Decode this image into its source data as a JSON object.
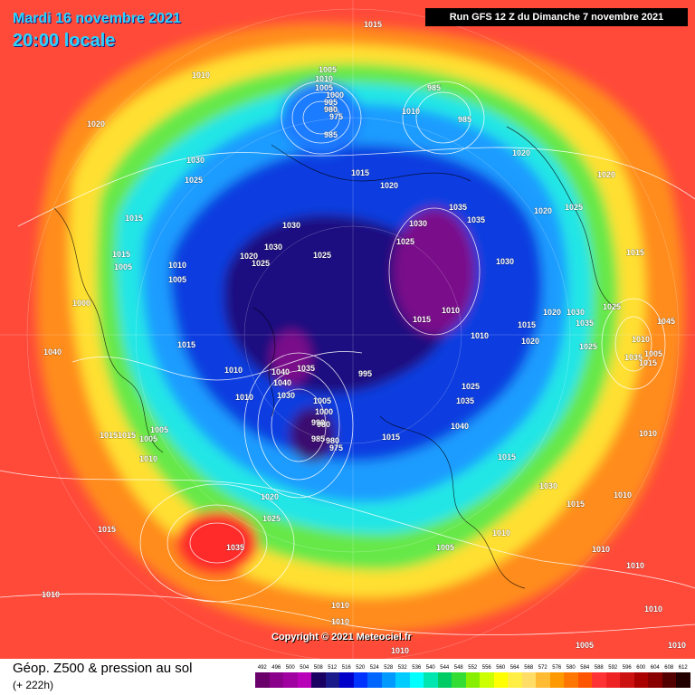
{
  "header": {
    "date": "Mardi 16 novembre 2021",
    "time": "20:00 locale",
    "run": "Run GFS 12 Z du Dimanche 7 novembre 2021"
  },
  "copyright": "Copyright © 2021 Meteociel.fr",
  "footer": {
    "title": "Géop. Z500 & pression au sol",
    "subtitle": "(+ 222h)"
  },
  "scale": {
    "labels": [
      "492",
      "496",
      "500",
      "504",
      "508",
      "512",
      "516",
      "520",
      "524",
      "528",
      "532",
      "536",
      "540",
      "544",
      "548",
      "552",
      "556",
      "560",
      "564",
      "568",
      "572",
      "576",
      "580",
      "584",
      "588",
      "592",
      "596",
      "600",
      "604",
      "608",
      "612"
    ],
    "colors": [
      "#6a006a",
      "#8a008a",
      "#a000a0",
      "#b800b8",
      "#1a0060",
      "#1a1a8a",
      "#0000c8",
      "#0033ff",
      "#0066ff",
      "#0099ff",
      "#00ccff",
      "#00ffff",
      "#00e6b0",
      "#00cc66",
      "#33dd33",
      "#88ee00",
      "#ccff00",
      "#ffff00",
      "#ffee44",
      "#ffdd66",
      "#ffbb33",
      "#ff9900",
      "#ff7700",
      "#ff5500",
      "#ff3333",
      "#ee2222",
      "#cc1111",
      "#aa0000",
      "#880000",
      "#550000",
      "#220000"
    ]
  },
  "isobars": [
    {
      "text": "1015"
    },
    {
      "text": "1005"
    },
    {
      "text": "1010"
    },
    {
      "text": "1010"
    },
    {
      "text": "1005"
    },
    {
      "text": "1000"
    },
    {
      "text": "995"
    },
    {
      "text": "990"
    },
    {
      "text": "980"
    },
    {
      "text": "975"
    },
    {
      "text": "985"
    },
    {
      "text": "985"
    },
    {
      "text": "1010"
    },
    {
      "text": "985"
    },
    {
      "text": "1020"
    },
    {
      "text": "1030"
    },
    {
      "text": "1025"
    },
    {
      "text": "1015"
    },
    {
      "text": "1020"
    },
    {
      "text": "1020"
    },
    {
      "text": "1015"
    },
    {
      "text": "1020"
    },
    {
      "text": "1015"
    },
    {
      "text": "1005"
    },
    {
      "text": "1010"
    },
    {
      "text": "1005"
    },
    {
      "text": "1000"
    },
    {
      "text": "1020"
    },
    {
      "text": "1025"
    },
    {
      "text": "1030"
    },
    {
      "text": "1025"
    },
    {
      "text": "1030"
    },
    {
      "text": "1035"
    },
    {
      "text": "1035"
    },
    {
      "text": "1020"
    },
    {
      "text": "1025"
    },
    {
      "text": "1030"
    },
    {
      "text": "1015"
    },
    {
      "text": "1025"
    },
    {
      "text": "1020"
    },
    {
      "text": "1025"
    },
    {
      "text": "1015"
    },
    {
      "text": "1010"
    },
    {
      "text": "1010"
    },
    {
      "text": "1015"
    },
    {
      "text": "1020"
    },
    {
      "text": "1030"
    },
    {
      "text": "1035"
    },
    {
      "text": "1040"
    },
    {
      "text": "1015"
    },
    {
      "text": "1010"
    },
    {
      "text": "1005"
    },
    {
      "text": "1045"
    },
    {
      "text": "1035"
    },
    {
      "text": "1025"
    },
    {
      "text": "1040"
    },
    {
      "text": "1040"
    },
    {
      "text": "1030"
    },
    {
      "text": "1035"
    },
    {
      "text": "995"
    },
    {
      "text": "1005"
    },
    {
      "text": "1000"
    },
    {
      "text": "990"
    },
    {
      "text": "980"
    },
    {
      "text": "985"
    },
    {
      "text": "980"
    },
    {
      "text": "975"
    },
    {
      "text": "1025"
    },
    {
      "text": "1030"
    },
    {
      "text": "1035"
    },
    {
      "text": "1040"
    },
    {
      "text": "1015"
    },
    {
      "text": "1015"
    },
    {
      "text": "1015"
    },
    {
      "text": "1010"
    },
    {
      "text": "1005"
    },
    {
      "text": "1005"
    },
    {
      "text": "1015"
    },
    {
      "text": "1030"
    },
    {
      "text": "1020"
    },
    {
      "text": "1025"
    },
    {
      "text": "1035"
    },
    {
      "text": "1015"
    },
    {
      "text": "1010"
    },
    {
      "text": "1010"
    },
    {
      "text": "1010"
    },
    {
      "text": "1010"
    },
    {
      "text": "1005"
    },
    {
      "text": "1010"
    },
    {
      "text": "1010"
    },
    {
      "text": "1015"
    },
    {
      "text": "1010"
    },
    {
      "text": "1010"
    },
    {
      "text": "1010"
    },
    {
      "text": "1010"
    },
    {
      "text": "1005"
    },
    {
      "text": "1010"
    },
    {
      "text": "1010"
    },
    {
      "text": "1015"
    },
    {
      "text": "1010"
    }
  ]
}
